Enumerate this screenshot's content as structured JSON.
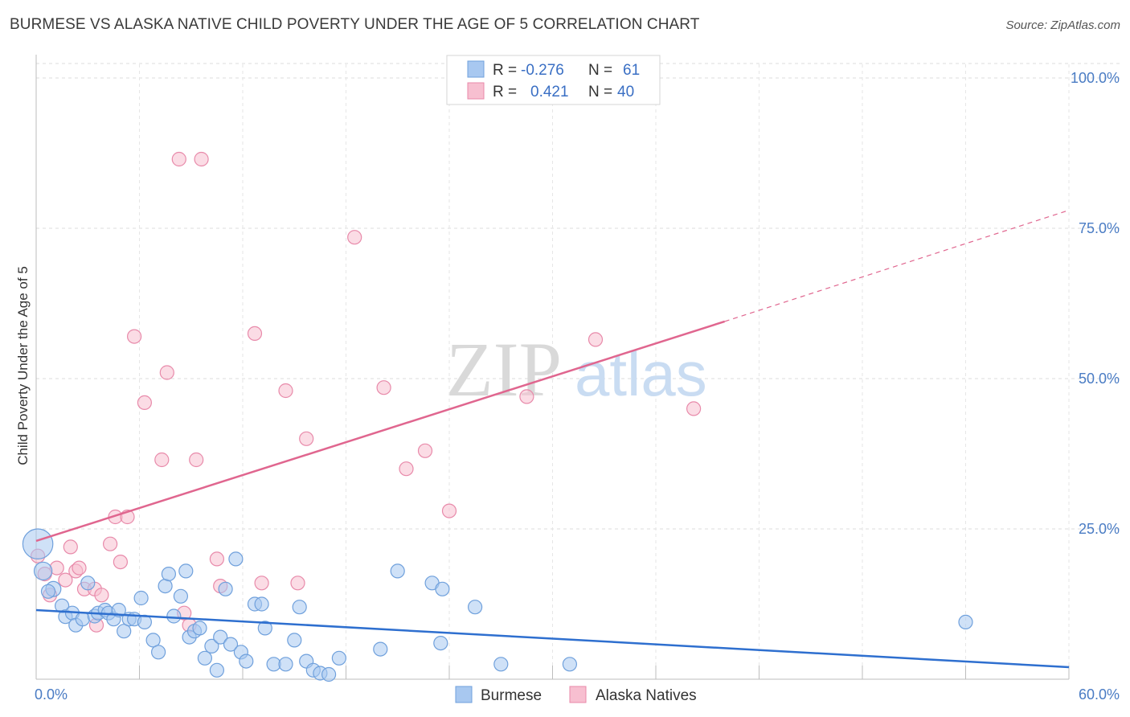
{
  "title": "BURMESE VS ALASKA NATIVE CHILD POVERTY UNDER THE AGE OF 5 CORRELATION CHART",
  "source": "Source: ZipAtlas.com",
  "watermark": {
    "zip": "ZIP",
    "atlas": "atlas"
  },
  "legend_top": {
    "rows": [
      {
        "r_label": "R =",
        "r_value": "-0.276",
        "n_label": "N =",
        "n_value": "61",
        "color": "#a8c8f0",
        "stroke": "#6fa0dc"
      },
      {
        "r_label": "R =",
        "r_value": "0.421",
        "n_label": "N =",
        "n_value": "40",
        "color": "#f7bfd0",
        "stroke": "#e88aaa"
      }
    ]
  },
  "legend_bottom": [
    {
      "label": "Burmese",
      "color": "#a8c8f0",
      "stroke": "#6fa0dc"
    },
    {
      "label": "Alaska Natives",
      "color": "#f7bfd0",
      "stroke": "#e88aaa"
    }
  ],
  "chart_data": {
    "type": "scatter",
    "title": "BURMESE VS ALASKA NATIVE CHILD POVERTY UNDER THE AGE OF 5 CORRELATION CHART",
    "xlabel": "",
    "ylabel": "Child Poverty Under the Age of 5",
    "xlim": [
      0,
      60
    ],
    "ylim": [
      0,
      100
    ],
    "x_tick_labels": [
      "0.0%",
      "60.0%"
    ],
    "y_tick_labels": [
      "100.0%",
      "75.0%",
      "50.0%",
      "25.0%"
    ],
    "y_tick_values": [
      100,
      75,
      50,
      25
    ],
    "grid": true,
    "legend_position": "top-center",
    "colors": {
      "burmese": "#6fa0dc",
      "burmese_fill": "#a8c8f0",
      "alaska": "#e88aaa",
      "alaska_fill": "#f7bfd0",
      "burmese_line": "#2e6fcf",
      "alaska_line": "#e0668f"
    },
    "series": [
      {
        "name": "Burmese",
        "trend": {
          "x": [
            0,
            60
          ],
          "y": [
            11.5,
            2.0
          ],
          "dashed_from": null
        },
        "points": [
          [
            0.1,
            22.5,
            2.2
          ],
          [
            0.4,
            18.0,
            1.3
          ],
          [
            1.0,
            15.0,
            1.1
          ],
          [
            0.7,
            14.6,
            1.0
          ],
          [
            1.5,
            12.2,
            1.0
          ],
          [
            1.7,
            10.4,
            1.0
          ],
          [
            2.1,
            11.0,
            1.0
          ],
          [
            2.3,
            9.0,
            1.0
          ],
          [
            2.7,
            10.0,
            1.0
          ],
          [
            3.0,
            16.0,
            1.0
          ],
          [
            3.4,
            10.5,
            1.0
          ],
          [
            3.6,
            11.0,
            1.0
          ],
          [
            4.0,
            11.5,
            1.0
          ],
          [
            4.2,
            11.0,
            1.0
          ],
          [
            4.5,
            10.0,
            1.0
          ],
          [
            4.8,
            11.5,
            1.0
          ],
          [
            5.1,
            8.0,
            1.0
          ],
          [
            5.4,
            10.0,
            1.0
          ],
          [
            5.7,
            10.0,
            1.0
          ],
          [
            6.1,
            13.5,
            1.0
          ],
          [
            6.3,
            9.5,
            1.0
          ],
          [
            6.8,
            6.5,
            1.0
          ],
          [
            7.1,
            4.5,
            1.0
          ],
          [
            7.5,
            15.5,
            1.0
          ],
          [
            7.7,
            17.5,
            1.0
          ],
          [
            8.0,
            10.5,
            1.0
          ],
          [
            8.4,
            13.8,
            1.0
          ],
          [
            8.7,
            18.0,
            1.0
          ],
          [
            8.9,
            7.0,
            1.0
          ],
          [
            9.2,
            8.0,
            1.0
          ],
          [
            9.5,
            8.5,
            1.0
          ],
          [
            9.8,
            3.5,
            1.0
          ],
          [
            10.2,
            5.5,
            1.0
          ],
          [
            10.5,
            1.5,
            1.0
          ],
          [
            10.7,
            7.0,
            1.0
          ],
          [
            11.0,
            15.0,
            1.0
          ],
          [
            11.3,
            5.8,
            1.0
          ],
          [
            11.6,
            20.0,
            1.0
          ],
          [
            11.9,
            4.5,
            1.0
          ],
          [
            12.2,
            3.0,
            1.0
          ],
          [
            12.7,
            12.5,
            1.0
          ],
          [
            13.1,
            12.5,
            1.0
          ],
          [
            13.3,
            8.5,
            1.0
          ],
          [
            13.8,
            2.5,
            1.0
          ],
          [
            14.5,
            2.5,
            1.0
          ],
          [
            15.0,
            6.5,
            1.0
          ],
          [
            15.3,
            12.0,
            1.0
          ],
          [
            15.7,
            3.0,
            1.0
          ],
          [
            16.1,
            1.5,
            1.0
          ],
          [
            16.5,
            1.0,
            1.0
          ],
          [
            17.0,
            0.8,
            1.0
          ],
          [
            17.6,
            3.5,
            1.0
          ],
          [
            20.0,
            5.0,
            1.0
          ],
          [
            21.0,
            18.0,
            1.0
          ],
          [
            23.0,
            16.0,
            1.0
          ],
          [
            23.6,
            15.0,
            1.0
          ],
          [
            23.5,
            6.0,
            1.0
          ],
          [
            25.5,
            12.0,
            1.0
          ],
          [
            27.0,
            2.5,
            1.0
          ],
          [
            31.0,
            2.5,
            1.0
          ],
          [
            54.0,
            9.5,
            1.0
          ]
        ]
      },
      {
        "name": "Alaska Natives",
        "trend": {
          "x": [
            0,
            40
          ],
          "y": [
            23.0,
            59.5
          ],
          "dashed_from": 40,
          "dashed_to": [
            60,
            78.0
          ]
        },
        "points": [
          [
            0.1,
            20.5,
            1.0
          ],
          [
            0.5,
            17.5,
            1.0
          ],
          [
            0.8,
            14.0,
            1.0
          ],
          [
            1.2,
            18.5,
            1.0
          ],
          [
            1.7,
            16.5,
            1.0
          ],
          [
            2.0,
            22.0,
            1.0
          ],
          [
            2.3,
            18.0,
            1.0
          ],
          [
            2.5,
            18.5,
            1.0
          ],
          [
            2.8,
            15.0,
            1.0
          ],
          [
            3.4,
            15.0,
            1.0
          ],
          [
            3.5,
            9.0,
            1.0
          ],
          [
            3.8,
            14.0,
            1.0
          ],
          [
            4.3,
            22.5,
            1.0
          ],
          [
            4.6,
            27.0,
            1.0
          ],
          [
            4.9,
            19.5,
            1.0
          ],
          [
            5.3,
            27.0,
            1.0
          ],
          [
            5.7,
            57.0,
            1.0
          ],
          [
            6.3,
            46.0,
            1.0
          ],
          [
            7.3,
            36.5,
            1.0
          ],
          [
            7.6,
            51.0,
            1.0
          ],
          [
            8.3,
            86.5,
            1.0
          ],
          [
            8.6,
            11.0,
            1.0
          ],
          [
            8.9,
            9.0,
            1.0
          ],
          [
            9.3,
            36.5,
            1.0
          ],
          [
            9.6,
            86.5,
            1.0
          ],
          [
            10.5,
            20.0,
            1.0
          ],
          [
            10.7,
            15.5,
            1.0
          ],
          [
            12.7,
            57.5,
            1.0
          ],
          [
            13.1,
            16.0,
            1.0
          ],
          [
            14.5,
            48.0,
            1.0
          ],
          [
            15.2,
            16.0,
            1.0
          ],
          [
            15.7,
            40.0,
            1.0
          ],
          [
            18.5,
            73.5,
            1.0
          ],
          [
            20.2,
            48.5,
            1.0
          ],
          [
            21.5,
            35.0,
            1.0
          ],
          [
            22.6,
            38.0,
            1.0
          ],
          [
            24.0,
            28.0,
            1.0
          ],
          [
            28.5,
            47.0,
            1.0
          ],
          [
            32.5,
            56.5,
            1.0
          ],
          [
            38.2,
            45.0,
            1.0
          ]
        ]
      }
    ]
  }
}
